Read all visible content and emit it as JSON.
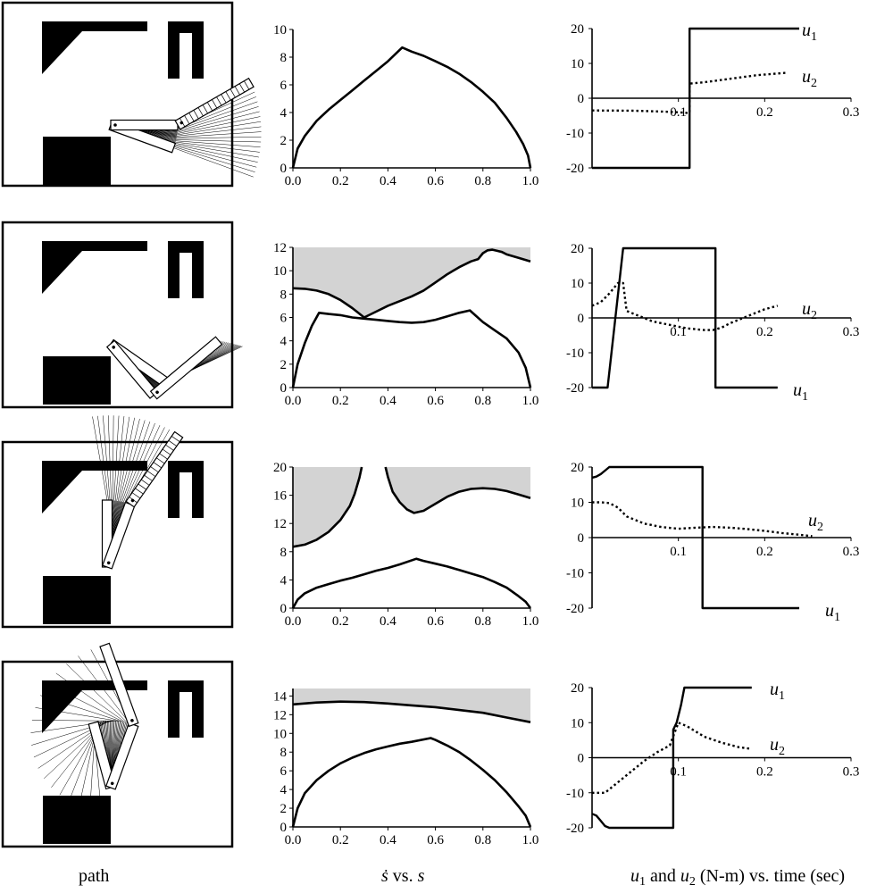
{
  "captions": {
    "path": "path",
    "sdot_symbol": "ṡ",
    "vs": " vs. ",
    "s_symbol": "s",
    "u_label": "u",
    "u_and": " and ",
    "u_rest": " (N-m) vs. time (sec)",
    "sub1": "1",
    "sub2": "2"
  },
  "colors": {
    "ink": "#000000",
    "shade": "#d3d3d3",
    "paper": "#ffffff"
  },
  "chart_data": [
    {
      "type": "line",
      "panel": "sdot-vs-s row 1",
      "xlim": [
        0,
        1
      ],
      "ylim": [
        0,
        10
      ],
      "xticks": [
        "0.0",
        "0.2",
        "0.4",
        "0.6",
        "0.8",
        "1.0"
      ],
      "yticks": [
        "0",
        "2",
        "4",
        "6",
        "8",
        "10"
      ],
      "shaded_region": false,
      "series": [
        {
          "x": [
            0,
            0.02,
            0.05,
            0.1,
            0.15,
            0.2,
            0.25,
            0.3,
            0.35,
            0.4,
            0.46,
            0.5,
            0.55,
            0.6,
            0.65,
            0.7,
            0.75,
            0.8,
            0.85,
            0.9,
            0.94,
            0.97,
            0.99,
            1.0
          ],
          "y": [
            0,
            1.4,
            2.3,
            3.4,
            4.2,
            4.9,
            5.6,
            6.3,
            7.0,
            7.7,
            8.7,
            8.4,
            8.1,
            7.7,
            7.3,
            6.8,
            6.2,
            5.5,
            4.7,
            3.6,
            2.6,
            1.7,
            0.9,
            0
          ]
        }
      ]
    },
    {
      "type": "line",
      "panel": "u1 u2 vs time row 1",
      "xlim": [
        0,
        0.3
      ],
      "ylim": [
        -20,
        20
      ],
      "xticks": [
        "0.1",
        "0.2",
        "0.3"
      ],
      "yticks": [
        "20",
        "10",
        "0",
        "-10",
        "-20"
      ],
      "series": [
        {
          "name": "u",
          "sub": "1",
          "style": "solid",
          "x": [
            0,
            0.113,
            0.113,
            0.24
          ],
          "y": [
            -20,
            -20,
            20,
            20
          ]
        },
        {
          "name": "u",
          "sub": "2",
          "style": "dotted",
          "x": [
            0,
            0.05,
            0.09,
            0.11,
            0.113,
            0.113,
            0.13,
            0.16,
            0.19,
            0.225
          ],
          "y": [
            -3.5,
            -3.6,
            -3.9,
            -4.2,
            -4.2,
            4.2,
            4.6,
            5.6,
            6.6,
            7.3
          ]
        }
      ]
    },
    {
      "type": "line",
      "panel": "sdot-vs-s row 2",
      "xlim": [
        0,
        1
      ],
      "ylim": [
        0,
        12
      ],
      "xticks": [
        "0.0",
        "0.2",
        "0.4",
        "0.6",
        "0.8",
        "1.0"
      ],
      "yticks": [
        "0",
        "2",
        "4",
        "6",
        "8",
        "10",
        "12"
      ],
      "shaded_region": true,
      "series": [
        {
          "x": [
            0,
            0.05,
            0.1,
            0.15,
            0.2,
            0.25,
            0.3,
            0.35,
            0.4,
            0.45,
            0.5,
            0.55,
            0.6,
            0.65,
            0.7,
            0.75,
            0.78,
            0.8,
            0.82,
            0.84,
            0.86,
            0.88,
            0.9,
            0.95,
            1.0
          ],
          "y": [
            8.5,
            8.45,
            8.3,
            8.0,
            7.5,
            6.8,
            6.0,
            6.5,
            7.0,
            7.4,
            7.8,
            8.3,
            9.0,
            9.7,
            10.3,
            10.8,
            11.0,
            11.5,
            11.75,
            11.8,
            11.7,
            11.6,
            11.4,
            11.1,
            10.8
          ]
        },
        {
          "x": [
            0,
            0.02,
            0.05,
            0.08,
            0.11,
            0.15,
            0.2,
            0.25,
            0.3,
            0.35,
            0.4,
            0.45,
            0.5,
            0.55,
            0.6,
            0.65,
            0.7,
            0.745,
            0.8,
            0.85,
            0.9,
            0.95,
            0.98,
            1.0
          ],
          "y": [
            0,
            2.0,
            3.8,
            5.3,
            6.4,
            6.3,
            6.2,
            6.0,
            5.9,
            5.8,
            5.7,
            5.6,
            5.55,
            5.6,
            5.8,
            6.1,
            6.4,
            6.6,
            5.6,
            4.9,
            4.2,
            3.0,
            1.7,
            0
          ]
        }
      ]
    },
    {
      "type": "line",
      "panel": "u1 u2 vs time row 2",
      "xlim": [
        0,
        0.3
      ],
      "ylim": [
        -20,
        20
      ],
      "xticks": [
        "0.1",
        "0.2",
        "0.3"
      ],
      "yticks": [
        "20",
        "10",
        "0",
        "-10",
        "-20"
      ],
      "series": [
        {
          "name": "u",
          "sub": "1",
          "style": "solid",
          "x": [
            0,
            0.018,
            0.036,
            0.036,
            0.143,
            0.143,
            0.215
          ],
          "y": [
            -20,
            -20,
            20,
            20,
            20,
            -20,
            -20
          ]
        },
        {
          "name": "u",
          "sub": "2",
          "style": "dotted",
          "x": [
            0,
            0.01,
            0.02,
            0.03,
            0.036,
            0.04,
            0.05,
            0.07,
            0.09,
            0.11,
            0.13,
            0.14,
            0.15,
            0.16,
            0.18,
            0.2,
            0.215
          ],
          "y": [
            3.5,
            4.5,
            7,
            10,
            10,
            2,
            1,
            -1,
            -2,
            -3,
            -3.5,
            -3.5,
            -2.8,
            -1.5,
            0.5,
            2.5,
            3.5
          ]
        }
      ]
    },
    {
      "type": "line",
      "panel": "sdot-vs-s row 3",
      "xlim": [
        0,
        1
      ],
      "ylim": [
        0,
        20
      ],
      "xticks": [
        "0.0",
        "0.2",
        "0.4",
        "0.6",
        "0.8",
        "1.0"
      ],
      "yticks": [
        "0",
        "4",
        "8",
        "12",
        "16",
        "20"
      ],
      "shaded_region": true,
      "series": [
        {
          "x": [
            0,
            0.05,
            0.1,
            0.15,
            0.2,
            0.24,
            0.26,
            0.28,
            0.29
          ],
          "y": [
            8.7,
            9.0,
            9.7,
            10.8,
            12.5,
            14.5,
            16.2,
            18.5,
            20
          ]
        },
        {
          "x": [
            0.39,
            0.4,
            0.42,
            0.45,
            0.48,
            0.51,
            0.55,
            0.6,
            0.65,
            0.7,
            0.75,
            0.8,
            0.85,
            0.9,
            0.95,
            1.0
          ],
          "y": [
            20,
            18.6,
            16.5,
            15.0,
            14.0,
            13.5,
            13.8,
            14.8,
            15.8,
            16.5,
            16.9,
            17.0,
            16.9,
            16.6,
            16.1,
            15.6
          ]
        },
        {
          "x": [
            0,
            0.02,
            0.05,
            0.1,
            0.15,
            0.2,
            0.25,
            0.3,
            0.35,
            0.4,
            0.45,
            0.52,
            0.55,
            0.6,
            0.65,
            0.7,
            0.75,
            0.8,
            0.85,
            0.9,
            0.95,
            0.98,
            1.0
          ],
          "y": [
            0,
            1.2,
            2.1,
            2.9,
            3.4,
            3.9,
            4.3,
            4.8,
            5.3,
            5.7,
            6.2,
            7.0,
            6.7,
            6.3,
            5.9,
            5.4,
            4.9,
            4.4,
            3.7,
            2.9,
            1.7,
            0.9,
            0
          ]
        }
      ]
    },
    {
      "type": "line",
      "panel": "u1 u2 vs time row 3",
      "xlim": [
        0,
        0.3
      ],
      "ylim": [
        -20,
        20
      ],
      "xticks": [
        "0.1",
        "0.2",
        "0.3"
      ],
      "yticks": [
        "20",
        "10",
        "0",
        "-10",
        "-20"
      ],
      "series": [
        {
          "name": "u",
          "sub": "1",
          "style": "solid",
          "x": [
            0,
            0.005,
            0.01,
            0.015,
            0.02,
            0.128,
            0.128,
            0.24
          ],
          "y": [
            17,
            17.3,
            18,
            19,
            20,
            20,
            -20,
            -20
          ]
        },
        {
          "name": "u",
          "sub": "2",
          "style": "dotted",
          "x": [
            0,
            0.01,
            0.02,
            0.03,
            0.04,
            0.06,
            0.08,
            0.1,
            0.12,
            0.14,
            0.16,
            0.18,
            0.2,
            0.22,
            0.24,
            0.255
          ],
          "y": [
            10,
            10,
            9.8,
            8.5,
            6,
            4,
            3,
            2.5,
            2.8,
            3,
            2.8,
            2.4,
            1.9,
            1.3,
            0.8,
            0.4
          ]
        }
      ]
    },
    {
      "type": "line",
      "panel": "sdot-vs-s row 4",
      "xlim": [
        0,
        1
      ],
      "ylim": [
        0,
        14.8
      ],
      "xticks": [
        "0.0",
        "0.2",
        "0.4",
        "0.6",
        "0.8",
        "1.0"
      ],
      "yticks": [
        "0",
        "2",
        "4",
        "6",
        "8",
        "10",
        "12",
        "14"
      ],
      "shaded_region": true,
      "series": [
        {
          "x": [
            0,
            0.1,
            0.2,
            0.3,
            0.4,
            0.5,
            0.6,
            0.7,
            0.8,
            0.9,
            1.0
          ],
          "y": [
            13.1,
            13.3,
            13.4,
            13.35,
            13.2,
            13.0,
            12.8,
            12.5,
            12.2,
            11.7,
            11.2
          ]
        },
        {
          "x": [
            0,
            0.02,
            0.05,
            0.1,
            0.15,
            0.2,
            0.25,
            0.3,
            0.35,
            0.4,
            0.45,
            0.5,
            0.58,
            0.6,
            0.65,
            0.7,
            0.75,
            0.8,
            0.85,
            0.9,
            0.95,
            0.98,
            1.0
          ],
          "y": [
            0,
            2.0,
            3.6,
            5.0,
            6.0,
            6.8,
            7.4,
            7.9,
            8.3,
            8.6,
            8.9,
            9.1,
            9.5,
            9.3,
            8.7,
            8.0,
            7.1,
            6.1,
            5.0,
            3.7,
            2.2,
            1.2,
            0
          ]
        }
      ]
    },
    {
      "type": "line",
      "panel": "u1 u2 vs time row 4",
      "xlim": [
        0,
        0.3
      ],
      "ylim": [
        -20,
        20
      ],
      "xticks": [
        "0.1",
        "0.2",
        "0.3"
      ],
      "yticks": [
        "20",
        "10",
        "0",
        "-10",
        "-20"
      ],
      "series": [
        {
          "name": "u",
          "sub": "1",
          "style": "solid",
          "x": [
            0,
            0.005,
            0.01,
            0.015,
            0.02,
            0.094,
            0.094,
            0.098,
            0.103,
            0.107,
            0.185
          ],
          "y": [
            -16,
            -16.5,
            -18,
            -19.5,
            -20,
            -20,
            8,
            10,
            15,
            20,
            20
          ]
        },
        {
          "name": "u",
          "sub": "2",
          "style": "dotted",
          "x": [
            0,
            0.015,
            0.03,
            0.045,
            0.06,
            0.075,
            0.09,
            0.1,
            0.11,
            0.13,
            0.15,
            0.17,
            0.185
          ],
          "y": [
            -10,
            -10,
            -7,
            -4,
            -1,
            1.5,
            3.5,
            10,
            9,
            6,
            4.3,
            3,
            2.5
          ]
        }
      ]
    }
  ]
}
